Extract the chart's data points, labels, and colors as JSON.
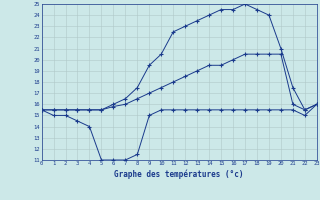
{
  "xlabel": "Graphe des températures (°c)",
  "background_color": "#cce8e8",
  "line_color": "#1a3a8c",
  "grid_color": "#b0c8c8",
  "hours": [
    0,
    1,
    2,
    3,
    4,
    5,
    6,
    7,
    8,
    9,
    10,
    11,
    12,
    13,
    14,
    15,
    16,
    17,
    18,
    19,
    20,
    21,
    22,
    23
  ],
  "max_temps": [
    15.5,
    15.5,
    15.5,
    15.5,
    15.5,
    15.5,
    16.0,
    16.5,
    17.5,
    19.5,
    20.5,
    22.5,
    23.0,
    23.5,
    24.0,
    24.5,
    24.5,
    25.0,
    24.5,
    24.0,
    21.0,
    17.5,
    15.5,
    16.0
  ],
  "avg_temps": [
    15.5,
    15.5,
    15.5,
    15.5,
    15.5,
    15.5,
    15.8,
    16.0,
    16.5,
    17.0,
    17.5,
    18.0,
    18.5,
    19.0,
    19.5,
    19.5,
    20.0,
    20.5,
    20.5,
    20.5,
    20.5,
    16.0,
    15.5,
    16.0
  ],
  "min_temps": [
    15.5,
    15.0,
    15.0,
    14.5,
    14.0,
    11.0,
    11.0,
    11.0,
    11.5,
    15.0,
    15.5,
    15.5,
    15.5,
    15.5,
    15.5,
    15.5,
    15.5,
    15.5,
    15.5,
    15.5,
    15.5,
    15.5,
    15.0,
    16.0
  ],
  "ylim_min": 11,
  "ylim_max": 25,
  "xlim_min": 0,
  "xlim_max": 23
}
